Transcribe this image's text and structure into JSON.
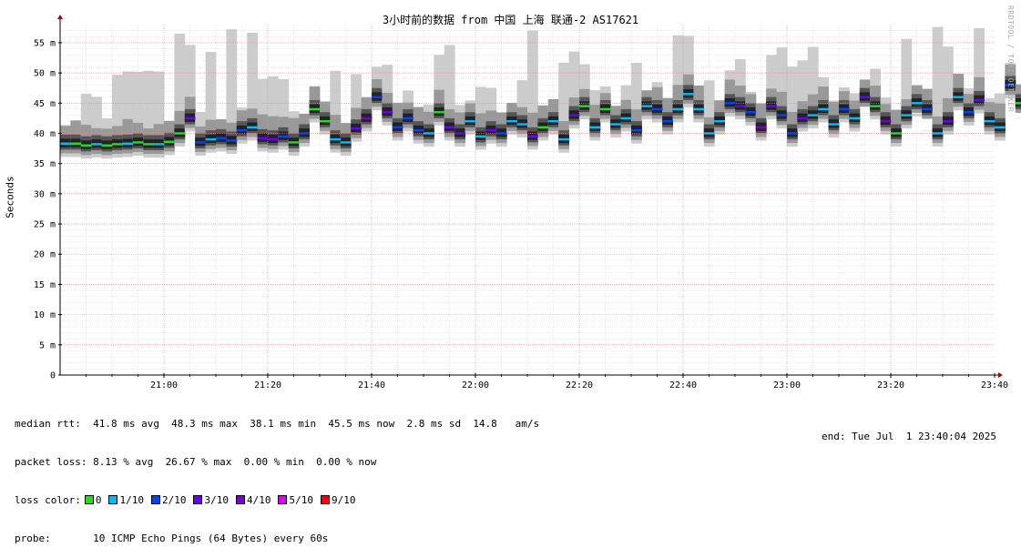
{
  "chart_data": {
    "type": "line",
    "title": "3小时前的数据 from 中国 上海 联通-2 AS17621",
    "xlabel": "",
    "ylabel": "Seconds",
    "x_ticks": [
      "21:00",
      "21:20",
      "21:40",
      "22:00",
      "22:20",
      "22:40",
      "23:00",
      "23:20",
      "23:40"
    ],
    "x_range": [
      "20:40",
      "23:40"
    ],
    "y_ticks": [
      "0",
      "5 m",
      "10 m",
      "15 m",
      "20 m",
      "25 m",
      "30 m",
      "35 m",
      "40 m",
      "45 m",
      "50 m",
      "55 m"
    ],
    "ylim": [
      0,
      58
    ],
    "y_unit": "ms",
    "grid": true,
    "series": [
      {
        "name": "median rtt",
        "x_start": "20:40",
        "step_minutes": 2,
        "values": [
          38.3,
          38.3,
          38.0,
          38.2,
          38.0,
          38.2,
          38.3,
          38.5,
          38.2,
          38.2,
          38.6,
          40.0,
          42.5,
          38.5,
          39.0,
          39.2,
          38.8,
          40.5,
          41.0,
          39.2,
          39.0,
          39.5,
          38.5,
          40.0,
          44.0,
          42.0,
          39.0,
          38.5,
          40.8,
          42.5,
          46.0,
          43.5,
          41.0,
          42.5,
          40.5,
          40.0,
          43.5,
          41.0,
          40.0,
          42.0,
          39.5,
          40.5,
          40.0,
          42.0,
          41.5,
          39.5,
          41.0,
          42.0,
          39.0,
          43.0,
          44.5,
          41.0,
          44.0,
          41.5,
          42.5,
          40.5,
          44.5,
          44.0,
          42.0,
          44.0,
          46.5,
          44.0,
          40.0,
          42.0,
          45.0,
          44.5,
          43.5,
          41.0,
          44.5,
          43.0,
          40.0,
          42.5,
          43.0,
          44.0,
          41.5,
          44.0,
          42.5,
          46.0,
          44.5,
          42.0,
          40.0,
          43.0,
          45.0,
          44.0,
          40.0,
          42.0,
          46.0,
          43.5,
          45.5,
          42.0,
          41.0,
          48.0,
          45.0,
          42.5,
          45.0,
          46.0,
          44.5,
          45.0
        ]
      }
    ],
    "loss_legend": [
      {
        "label": "0",
        "color": "#22dd22"
      },
      {
        "label": "1/10",
        "color": "#00bbff"
      },
      {
        "label": "2/10",
        "color": "#0044ff"
      },
      {
        "label": "3/10",
        "color": "#6600ff"
      },
      {
        "label": "4/10",
        "color": "#7700cc"
      },
      {
        "label": "5/10",
        "color": "#dd00ff"
      },
      {
        "label": "9/10",
        "color": "#ff0000"
      }
    ]
  },
  "watermark": "RRDTOOL / TOBI OETIKER",
  "stats": {
    "median_rtt": "median rtt:  41.8 ms avg  48.3 ms max  38.1 ms min  45.5 ms now  2.8 ms sd  14.8   am/s",
    "packet_loss": "packet loss: 8.13 % avg  26.67 % max  0.00 % min  0.00 % now",
    "loss_color_label": "loss color:",
    "probe": "probe:       10 ICMP Echo Pings (64 Bytes) every 60s",
    "end": "end: Tue Jul  1 23:40:04 2025"
  }
}
